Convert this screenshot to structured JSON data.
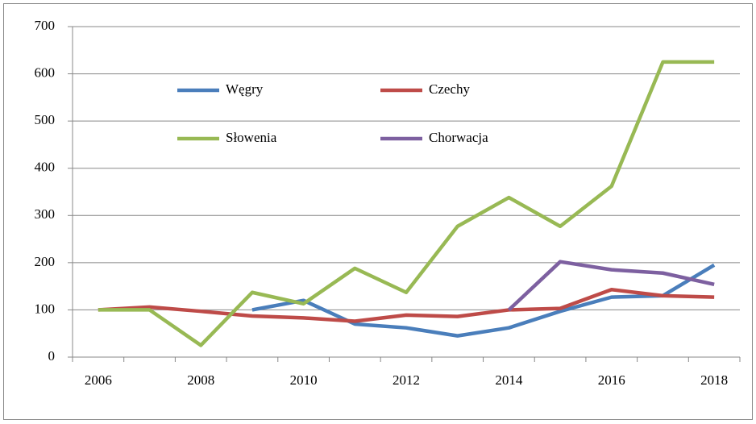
{
  "chart_data": {
    "type": "line",
    "categories": [
      "2006",
      null,
      "2008",
      null,
      "2010",
      null,
      "2012",
      null,
      "2014",
      null,
      "2016",
      null,
      "2018"
    ],
    "series": [
      {
        "name": "Węgry",
        "color": "#4a7ebb",
        "values": [
          null,
          null,
          null,
          100,
          120,
          70,
          62,
          45,
          62,
          97,
          127,
          130,
          195
        ]
      },
      {
        "name": "Czechy",
        "color": "#be4b48",
        "values": [
          100,
          106,
          97,
          87,
          83,
          76,
          89,
          86,
          100,
          103,
          143,
          130,
          127
        ]
      },
      {
        "name": "Słowenia",
        "color": "#98b954",
        "values": [
          100,
          100,
          25,
          137,
          113,
          188,
          137,
          277,
          338,
          277,
          362,
          625,
          625
        ]
      },
      {
        "name": "Chorwacja",
        "color": "#7d60a0",
        "values": [
          null,
          null,
          null,
          null,
          null,
          null,
          null,
          null,
          100,
          202,
          185,
          178,
          154
        ]
      }
    ],
    "ylim": [
      0,
      700
    ],
    "yticks": [
      0,
      100,
      200,
      300,
      400,
      500,
      600,
      700
    ],
    "grid": true
  }
}
